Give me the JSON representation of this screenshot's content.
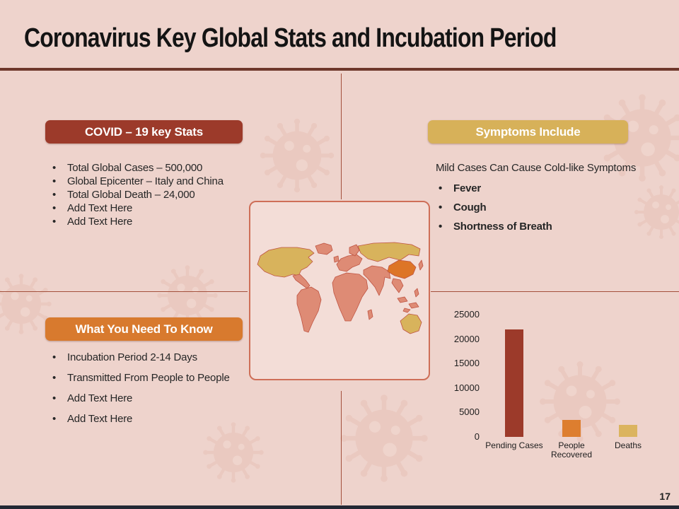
{
  "page": {
    "title": "Coronavirus Key Global Stats and Incubation Period",
    "page_number": "17",
    "background_color": "#eed3cc",
    "title_rule_color": "#6e372b",
    "divider_color": "#a3503c",
    "footer_bar_color": "#232834"
  },
  "sections": {
    "covid_stats": {
      "header": "COVID – 19 key Stats",
      "header_color": "#9c3a2a",
      "items": [
        "Total Global Cases – 500,000",
        "Global Epicenter – Italy and China",
        "Total Global Death – 24,000",
        "Add Text Here",
        "Add Text Here"
      ]
    },
    "symptoms": {
      "header": "Symptoms Include",
      "header_color": "#d7b159",
      "intro": "Mild Cases Can Cause Cold-like Symptoms",
      "items": [
        "Fever",
        "Cough",
        "Shortness of Breath"
      ]
    },
    "need_to_know": {
      "header": "What You Need To Know",
      "header_color": "#d87a2e",
      "items": [
        "Incubation Period 2-14 Days",
        "Transmitted From People to People",
        "Add Text Here",
        "Add Text Here"
      ]
    }
  },
  "map": {
    "border_color": "#ce6f58",
    "region_colors": {
      "default_land": "#de8b75",
      "highlight_gold": "#d8b35c",
      "highlight_orange": "#dd7527",
      "border": "#bf5442"
    },
    "gold_regions": [
      "north-america",
      "russia",
      "australia"
    ],
    "orange_regions": [
      "china"
    ]
  },
  "chart_data": {
    "type": "bar",
    "categories": [
      "Pending Cases",
      "People Recovered",
      "Deaths"
    ],
    "values": [
      22000,
      3500,
      2500
    ],
    "colors": [
      "#9c3a2a",
      "#dd7e2f",
      "#dbb45f"
    ],
    "ylim": [
      0,
      25000
    ],
    "yticks": [
      25000,
      20000,
      15000,
      10000,
      5000,
      0
    ],
    "title": "",
    "xlabel": "",
    "ylabel": "",
    "grid": false,
    "legend": false
  }
}
